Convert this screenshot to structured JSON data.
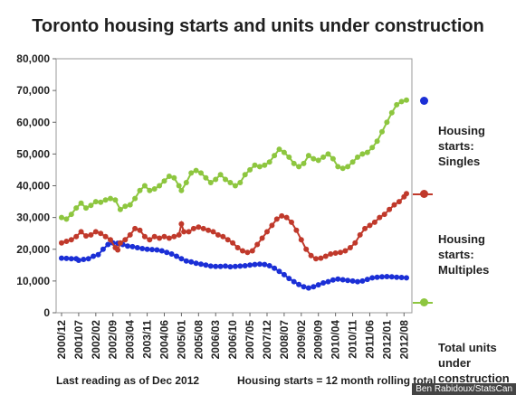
{
  "chart_data": {
    "type": "line",
    "title": "Toronto housing starts and units under construction",
    "ylim": [
      0,
      80000
    ],
    "yticks": [
      "0",
      "10,000",
      "20,000",
      "30,000",
      "40,000",
      "50,000",
      "60,000",
      "70,000",
      "80,000"
    ],
    "x_labels": [
      "2000/12",
      "2001/07",
      "2002/02",
      "2002/09",
      "2003/04",
      "2003/11",
      "2004/06",
      "2005/01",
      "2005/08",
      "2006/03",
      "2006/10",
      "2007/05",
      "2007/12",
      "2008/07",
      "2009/02",
      "2009/09",
      "2010/04",
      "2010/11",
      "2011/06",
      "2012/01",
      "2012/08"
    ],
    "grid": false,
    "legend_position": "right",
    "series": [
      {
        "name": "Housing starts: Singles",
        "color": "#1b2fd6",
        "points": [
          [
            0,
            17200
          ],
          [
            2,
            17100
          ],
          [
            4,
            17000
          ],
          [
            6,
            17000
          ],
          [
            7,
            16500
          ],
          [
            9,
            16800
          ],
          [
            11,
            17000
          ],
          [
            13,
            17800
          ],
          [
            15,
            18300
          ],
          [
            17,
            20000
          ],
          [
            19,
            21500
          ],
          [
            21,
            22000
          ],
          [
            23,
            21900
          ],
          [
            25,
            21500
          ],
          [
            27,
            21000
          ],
          [
            29,
            20800
          ],
          [
            31,
            20500
          ],
          [
            33,
            20200
          ],
          [
            35,
            20000
          ],
          [
            37,
            19900
          ],
          [
            39,
            19800
          ],
          [
            41,
            19500
          ],
          [
            43,
            19000
          ],
          [
            45,
            18500
          ],
          [
            47,
            17800
          ],
          [
            49,
            17000
          ],
          [
            51,
            16300
          ],
          [
            53,
            16000
          ],
          [
            55,
            15600
          ],
          [
            57,
            15300
          ],
          [
            59,
            15000
          ],
          [
            61,
            14700
          ],
          [
            63,
            14600
          ],
          [
            65,
            14600
          ],
          [
            67,
            14700
          ],
          [
            69,
            14500
          ],
          [
            71,
            14600
          ],
          [
            73,
            14700
          ],
          [
            75,
            14800
          ],
          [
            77,
            15000
          ],
          [
            79,
            15200
          ],
          [
            81,
            15300
          ],
          [
            83,
            15200
          ],
          [
            85,
            14800
          ],
          [
            87,
            14000
          ],
          [
            89,
            13000
          ],
          [
            91,
            12000
          ],
          [
            93,
            10800
          ],
          [
            95,
            9800
          ],
          [
            97,
            8900
          ],
          [
            99,
            8200
          ],
          [
            101,
            7800
          ],
          [
            103,
            8200
          ],
          [
            105,
            8800
          ],
          [
            107,
            9400
          ],
          [
            109,
            9800
          ],
          [
            111,
            10300
          ],
          [
            113,
            10600
          ],
          [
            115,
            10400
          ],
          [
            117,
            10200
          ],
          [
            119,
            10000
          ],
          [
            121,
            9800
          ],
          [
            123,
            10000
          ],
          [
            125,
            10500
          ],
          [
            127,
            11000
          ],
          [
            129,
            11200
          ],
          [
            131,
            11300
          ],
          [
            133,
            11400
          ],
          [
            135,
            11300
          ],
          [
            137,
            11200
          ],
          [
            139,
            11100
          ],
          [
            141,
            11000
          ]
        ]
      },
      {
        "name": "Housing starts: Multiples",
        "color": "#c0392b",
        "points": [
          [
            0,
            22000
          ],
          [
            2,
            22500
          ],
          [
            4,
            23000
          ],
          [
            6,
            24000
          ],
          [
            8,
            25500
          ],
          [
            10,
            24200
          ],
          [
            12,
            24500
          ],
          [
            14,
            25500
          ],
          [
            16,
            25000
          ],
          [
            18,
            24000
          ],
          [
            20,
            23000
          ],
          [
            22,
            20500
          ],
          [
            23,
            19800
          ],
          [
            24,
            22000
          ],
          [
            26,
            23000
          ],
          [
            28,
            24500
          ],
          [
            30,
            26500
          ],
          [
            32,
            26000
          ],
          [
            34,
            24000
          ],
          [
            36,
            23000
          ],
          [
            38,
            24000
          ],
          [
            40,
            23500
          ],
          [
            42,
            24000
          ],
          [
            44,
            23500
          ],
          [
            46,
            24000
          ],
          [
            48,
            24500
          ],
          [
            49,
            28000
          ],
          [
            50,
            25500
          ],
          [
            52,
            25500
          ],
          [
            54,
            26500
          ],
          [
            56,
            27000
          ],
          [
            58,
            26500
          ],
          [
            60,
            26000
          ],
          [
            62,
            25500
          ],
          [
            64,
            24500
          ],
          [
            66,
            24000
          ],
          [
            68,
            23000
          ],
          [
            70,
            22000
          ],
          [
            72,
            20500
          ],
          [
            74,
            19500
          ],
          [
            76,
            19000
          ],
          [
            78,
            19500
          ],
          [
            80,
            21500
          ],
          [
            82,
            23500
          ],
          [
            84,
            25500
          ],
          [
            86,
            27500
          ],
          [
            88,
            29500
          ],
          [
            90,
            30500
          ],
          [
            92,
            30000
          ],
          [
            94,
            28500
          ],
          [
            96,
            26000
          ],
          [
            98,
            23000
          ],
          [
            100,
            20000
          ],
          [
            102,
            18000
          ],
          [
            104,
            17000
          ],
          [
            106,
            17200
          ],
          [
            108,
            17800
          ],
          [
            110,
            18500
          ],
          [
            112,
            18800
          ],
          [
            114,
            19000
          ],
          [
            116,
            19500
          ],
          [
            118,
            20500
          ],
          [
            120,
            22000
          ],
          [
            122,
            24500
          ],
          [
            124,
            26500
          ],
          [
            126,
            27500
          ],
          [
            128,
            28500
          ],
          [
            130,
            30000
          ],
          [
            132,
            31000
          ],
          [
            134,
            32500
          ],
          [
            136,
            34000
          ],
          [
            138,
            35000
          ],
          [
            140,
            36500
          ],
          [
            141,
            37500
          ]
        ]
      },
      {
        "name": "Total units under construction",
        "color": "#8dc63f",
        "points": [
          [
            0,
            30000
          ],
          [
            2,
            29500
          ],
          [
            4,
            31000
          ],
          [
            6,
            33000
          ],
          [
            8,
            34500
          ],
          [
            10,
            33000
          ],
          [
            12,
            33800
          ],
          [
            14,
            35000
          ],
          [
            16,
            34800
          ],
          [
            18,
            35500
          ],
          [
            20,
            36000
          ],
          [
            22,
            35500
          ],
          [
            24,
            32500
          ],
          [
            26,
            33500
          ],
          [
            28,
            34000
          ],
          [
            30,
            36000
          ],
          [
            32,
            38500
          ],
          [
            34,
            40000
          ],
          [
            36,
            38500
          ],
          [
            38,
            39000
          ],
          [
            40,
            40000
          ],
          [
            42,
            41500
          ],
          [
            44,
            43000
          ],
          [
            46,
            42500
          ],
          [
            48,
            40000
          ],
          [
            49,
            38500
          ],
          [
            51,
            41000
          ],
          [
            53,
            44000
          ],
          [
            55,
            44800
          ],
          [
            57,
            44000
          ],
          [
            59,
            42500
          ],
          [
            61,
            41000
          ],
          [
            63,
            42000
          ],
          [
            65,
            43500
          ],
          [
            67,
            42000
          ],
          [
            69,
            41000
          ],
          [
            71,
            40000
          ],
          [
            73,
            41000
          ],
          [
            75,
            43500
          ],
          [
            77,
            45000
          ],
          [
            79,
            46500
          ],
          [
            81,
            46000
          ],
          [
            83,
            46500
          ],
          [
            85,
            47500
          ],
          [
            87,
            49500
          ],
          [
            89,
            51500
          ],
          [
            91,
            50500
          ],
          [
            93,
            49000
          ],
          [
            95,
            47000
          ],
          [
            97,
            46000
          ],
          [
            99,
            47000
          ],
          [
            101,
            49500
          ],
          [
            103,
            48500
          ],
          [
            105,
            48000
          ],
          [
            107,
            49000
          ],
          [
            109,
            50000
          ],
          [
            111,
            48500
          ],
          [
            113,
            46000
          ],
          [
            115,
            45500
          ],
          [
            117,
            46000
          ],
          [
            119,
            47500
          ],
          [
            121,
            49000
          ],
          [
            123,
            50000
          ],
          [
            125,
            50500
          ],
          [
            127,
            52000
          ],
          [
            129,
            54000
          ],
          [
            131,
            57000
          ],
          [
            133,
            60000
          ],
          [
            135,
            63000
          ],
          [
            137,
            65500
          ],
          [
            139,
            66500
          ],
          [
            141,
            67000
          ]
        ]
      }
    ]
  },
  "legend": [
    {
      "label": "Housing\nstarts:\nSingles",
      "color": "#1b2fd6"
    },
    {
      "label": "Housing\nstarts:\nMultiples",
      "color": "#c0392b"
    },
    {
      "label": "Total units\nunder\nconstruction",
      "color": "#8dc63f"
    }
  ],
  "footnote_left": "Last reading as of Dec 2012",
  "footnote_right": "Housing starts = 12 month rolling total",
  "credit": "Ben Rabidoux/StatsCan"
}
